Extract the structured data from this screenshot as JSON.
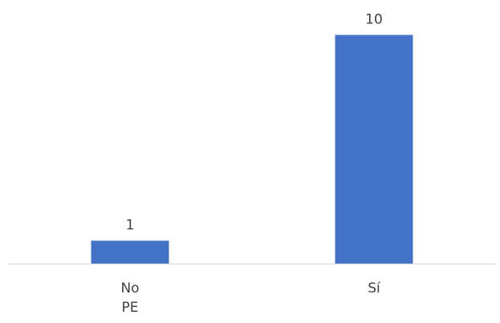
{
  "chart_data": {
    "type": "bar",
    "categories": [
      [
        "No",
        "PE"
      ],
      [
        "Sí"
      ]
    ],
    "values": [
      1,
      10
    ],
    "data_labels": [
      "1",
      "10"
    ],
    "title": "",
    "xlabel": "",
    "ylabel": "",
    "ylim": [
      0,
      11
    ],
    "grid": false,
    "legend": "none",
    "colors": {
      "bar": "#4472C4",
      "axis": "#D9D9D9",
      "text": "#404040"
    }
  }
}
